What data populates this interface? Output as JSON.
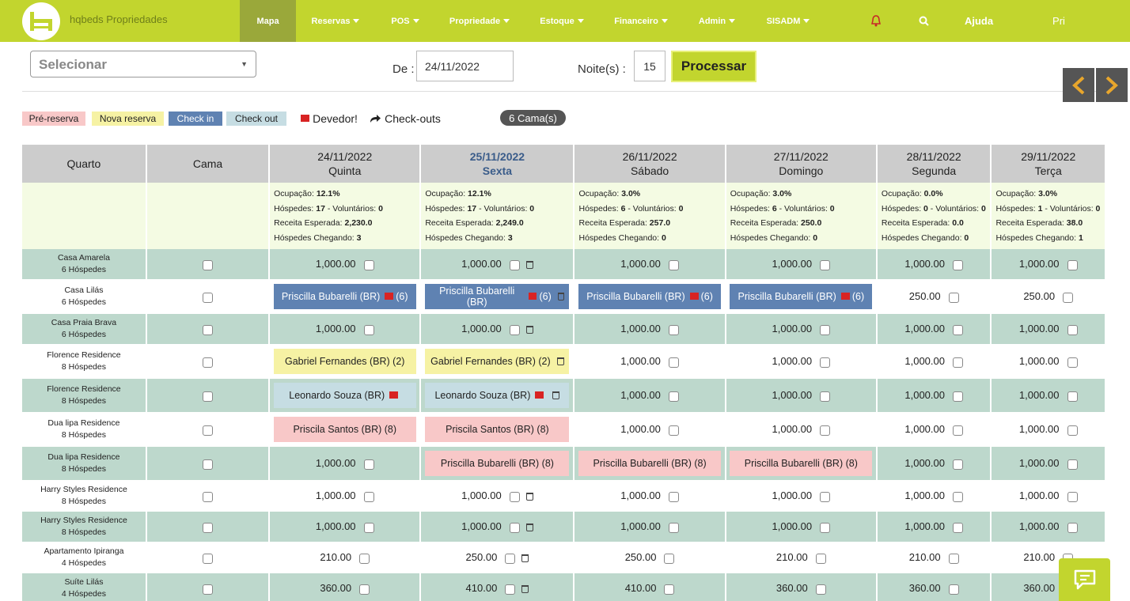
{
  "app": {
    "brand": "hqbeds Propriedades"
  },
  "nav": {
    "items": [
      "Mapa",
      "Reservas",
      "POS",
      "Propriedade",
      "Estoque",
      "Financeiro",
      "Admin",
      "SISADM"
    ],
    "help": "Ajuda",
    "user": "Pri"
  },
  "colors": {
    "accent": "#c2d52e",
    "checkin": "#5f82b2",
    "prereserva": "#f8c8c8",
    "nova": "#f6f2a4",
    "checkout": "#c6dde3"
  },
  "filters": {
    "select_placeholder": "Selecionar",
    "de_label": "De :",
    "de_value": "24/11/2022",
    "noites_label": "Noite(s) :",
    "noites_value": "15",
    "process_label": "Processar"
  },
  "legend": {
    "pre": "Pré-reserva",
    "nova": "Nova reserva",
    "checkin": "Check in",
    "checkout": "Check out",
    "devedor": "Devedor!",
    "checkouts": "Check-outs",
    "camas": "6 Cama(s)"
  },
  "table": {
    "col_quarto": "Quarto",
    "col_cama": "Cama",
    "days": [
      {
        "date": "24/11/2022",
        "day": "Quinta",
        "occ": "12.1%",
        "hosp": "17",
        "vol": "0",
        "rec": "2,230.0",
        "cheg": "3"
      },
      {
        "date": "25/11/2022",
        "day": "Sexta",
        "occ": "12.1%",
        "hosp": "17",
        "vol": "0",
        "rec": "2,249.0",
        "cheg": "3"
      },
      {
        "date": "26/11/2022",
        "day": "Sábado",
        "occ": "3.0%",
        "hosp": "6",
        "vol": "0",
        "rec": "257.0",
        "cheg": "0"
      },
      {
        "date": "27/11/2022",
        "day": "Domingo",
        "occ": "3.0%",
        "hosp": "6",
        "vol": "0",
        "rec": "250.0",
        "cheg": "0"
      },
      {
        "date": "28/11/2022",
        "day": "Segunda",
        "occ": "0.0%",
        "hosp": "0",
        "vol": "0",
        "rec": "0.0",
        "cheg": "0"
      },
      {
        "date": "29/11/2022",
        "day": "Terça",
        "occ": "3.0%",
        "hosp": "1",
        "vol": "0",
        "rec": "38.0",
        "cheg": "1"
      }
    ],
    "stat_labels": {
      "occ": "Ocupação: ",
      "hosp": "Hóspedes: ",
      "vol": " - Voluntários: ",
      "rec": "Receita Esperada: ",
      "cheg": "Hóspedes Chegando: "
    },
    "rows": [
      {
        "room": "Casa Amarela",
        "guests": "6 Hóspedes",
        "cells": [
          {
            "v": "1,000.00"
          },
          {
            "v": "1,000.00",
            "trash": true
          },
          {
            "v": "1,000.00"
          },
          {
            "v": "1,000.00"
          },
          {
            "v": "1,000.00"
          },
          {
            "v": "1,000.00"
          }
        ]
      },
      {
        "room": "Casa Lilás",
        "guests": "6 Hóspedes",
        "cells": [
          {
            "res": "Priscilla Bubarelli (BR)",
            "type": "ci",
            "flag": true,
            "n": "(6)"
          },
          {
            "res": "Priscilla Bubarelli (BR)",
            "type": "ci",
            "flag": true,
            "n": "(6)",
            "trash": true
          },
          {
            "res": "Priscilla Bubarelli (BR)",
            "type": "ci",
            "flag": true,
            "n": "(6)"
          },
          {
            "res": "Priscilla Bubarelli (BR)",
            "type": "ci",
            "flag": true,
            "n": "(6)"
          },
          {
            "v": "250.00"
          },
          {
            "v": "250.00"
          }
        ]
      },
      {
        "room": "Casa Praia Brava",
        "guests": "6 Hóspedes",
        "cells": [
          {
            "v": "1,000.00"
          },
          {
            "v": "1,000.00",
            "trash": true
          },
          {
            "v": "1,000.00"
          },
          {
            "v": "1,000.00"
          },
          {
            "v": "1,000.00"
          },
          {
            "v": "1,000.00"
          }
        ]
      },
      {
        "room": "Florence Residence",
        "guests": "8 Hóspedes",
        "cells": [
          {
            "res": "Gabriel Fernandes (BR) (2)",
            "type": "nova"
          },
          {
            "res": "Gabriel Fernandes (BR) (2)",
            "type": "nova",
            "trash": true
          },
          {
            "v": "1,000.00"
          },
          {
            "v": "1,000.00"
          },
          {
            "v": "1,000.00"
          },
          {
            "v": "1,000.00"
          }
        ]
      },
      {
        "room": "Florence Residence",
        "guests": "8 Hóspedes",
        "cells": [
          {
            "res": "Leonardo Souza (BR)",
            "type": "co",
            "flag": true
          },
          {
            "res": "Leonardo Souza (BR)",
            "type": "co",
            "flag": true,
            "trash": true
          },
          {
            "v": "1,000.00"
          },
          {
            "v": "1,000.00"
          },
          {
            "v": "1,000.00"
          },
          {
            "v": "1,000.00"
          }
        ]
      },
      {
        "room": "Dua lipa Residence",
        "guests": "8 Hóspedes",
        "cells": [
          {
            "res": "Priscila Santos (BR) (8)",
            "type": "pre"
          },
          {
            "res": "Priscila Santos (BR) (8)",
            "type": "pre"
          },
          {
            "v": "1,000.00"
          },
          {
            "v": "1,000.00"
          },
          {
            "v": "1,000.00"
          },
          {
            "v": "1,000.00"
          }
        ]
      },
      {
        "room": "Dua lipa Residence",
        "guests": "8 Hóspedes",
        "cells": [
          {
            "v": "1,000.00"
          },
          {
            "res": "Priscilla Bubarelli (BR) (8)",
            "type": "pre"
          },
          {
            "res": "Priscilla Bubarelli (BR) (8)",
            "type": "pre"
          },
          {
            "res": "Priscilla Bubarelli (BR) (8)",
            "type": "pre"
          },
          {
            "v": "1,000.00"
          },
          {
            "v": "1,000.00"
          }
        ]
      },
      {
        "room": "Harry Styles Residence",
        "guests": "8 Hóspedes",
        "cells": [
          {
            "v": "1,000.00"
          },
          {
            "v": "1,000.00",
            "trash": true
          },
          {
            "v": "1,000.00"
          },
          {
            "v": "1,000.00"
          },
          {
            "v": "1,000.00"
          },
          {
            "v": "1,000.00"
          }
        ]
      },
      {
        "room": "Harry Styles Residence",
        "guests": "8 Hóspedes",
        "cells": [
          {
            "v": "1,000.00"
          },
          {
            "v": "1,000.00",
            "trash": true
          },
          {
            "v": "1,000.00"
          },
          {
            "v": "1,000.00"
          },
          {
            "v": "1,000.00"
          },
          {
            "v": "1,000.00"
          }
        ]
      },
      {
        "room": "Apartamento Ipiranga",
        "guests": "4 Hóspedes",
        "cells": [
          {
            "v": "210.00"
          },
          {
            "v": "250.00",
            "trash": true
          },
          {
            "v": "250.00"
          },
          {
            "v": "210.00"
          },
          {
            "v": "210.00"
          },
          {
            "v": "210.00"
          }
        ]
      },
      {
        "room": "Suíte Lilás",
        "guests": "4 Hóspedes",
        "cells": [
          {
            "v": "360.00"
          },
          {
            "v": "410.00",
            "trash": true
          },
          {
            "v": "410.00"
          },
          {
            "v": "360.00"
          },
          {
            "v": "360.00"
          },
          {
            "v": "360.00"
          }
        ]
      }
    ]
  }
}
